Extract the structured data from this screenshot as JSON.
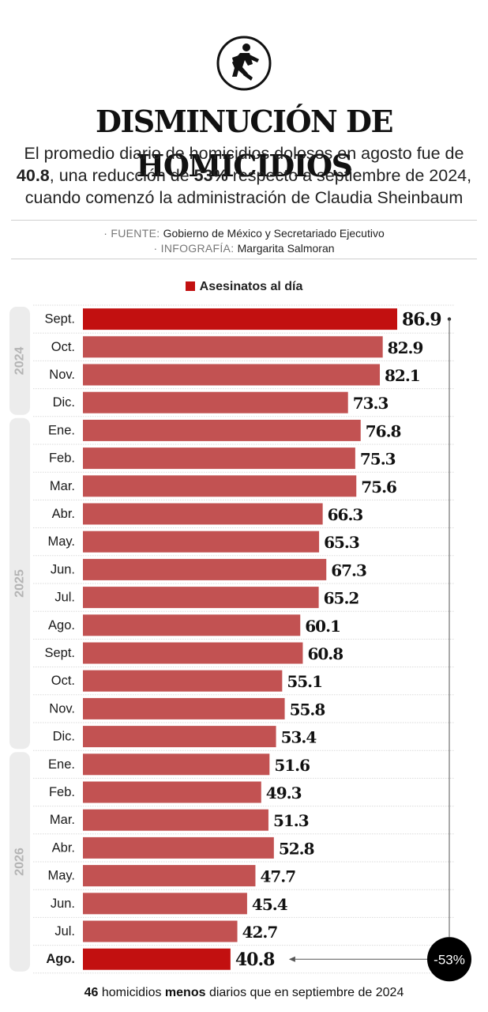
{
  "subtitle": {
    "part1": "El promedio diario de homicidios dolosos en agosto fue de ",
    "value": "40.8",
    "part2": ", una reducción de ",
    "percent": "53%",
    "part3": " respecto a septiembre de 2024, cuando comenzó la administración de Claudia Sheinbaum"
  },
  "credits": {
    "source_label": "· FUENTE: ",
    "source": "Gobierno de México y Secretariado Ejecutivo",
    "infographic_label": "· INFOGRAFÍA: ",
    "infographic": "Margarita Salmoran"
  },
  "footnote": {
    "value": "46",
    "part1": " homicidios ",
    "bold": "menos",
    "part2": " diarios que en septiembre de 2024"
  },
  "colors": {
    "highlight": "#c21010",
    "bar": "#c25252",
    "year_band": "#ececec",
    "year_text": "#b4b4b4"
  },
  "icon": "homicide-body-icon",
  "chart_data": {
    "type": "bar",
    "orientation": "horizontal",
    "title": "DISMINUCIÓN DE HOMICIDIOS",
    "legend": "Asesinatos al día",
    "categories": [
      "Sept.",
      "Oct.",
      "Nov.",
      "Dic.",
      "Ene.",
      "Feb.",
      "Mar.",
      "Abr.",
      "May.",
      "Jun.",
      "Jul.",
      "Ago.",
      "Sept.",
      "Oct.",
      "Nov.",
      "Dic.",
      "Ene.",
      "Feb.",
      "Mar.",
      "Abr.",
      "May.",
      "Jun.",
      "Jul.",
      "Ago."
    ],
    "values": [
      86.9,
      82.9,
      82.1,
      73.3,
      76.8,
      75.3,
      75.6,
      66.3,
      65.3,
      67.3,
      65.2,
      60.1,
      60.8,
      55.1,
      55.8,
      53.4,
      51.6,
      49.3,
      51.3,
      52.8,
      47.7,
      45.4,
      42.7,
      40.8
    ],
    "value_labels": [
      "86.9",
      "82.9",
      "82.1",
      "73.3",
      "76.8",
      "75.3",
      "75.6",
      "66.3",
      "65.3",
      "67.3",
      "65.2",
      "60.1",
      "60.8",
      "55.1",
      "55.8",
      "53.4",
      "51.6",
      "49.3",
      "51.3",
      "52.8",
      "47.7",
      "45.4",
      "42.7",
      "40.8"
    ],
    "highlighted": [
      0,
      23
    ],
    "year_groups": [
      {
        "label": "2024",
        "start": 0,
        "end": 3
      },
      {
        "label": "2025",
        "start": 4,
        "end": 15
      },
      {
        "label": "2026",
        "start": 16,
        "end": 23
      }
    ],
    "change_label": "-53%",
    "xlim": [
      0,
      86.9
    ]
  }
}
